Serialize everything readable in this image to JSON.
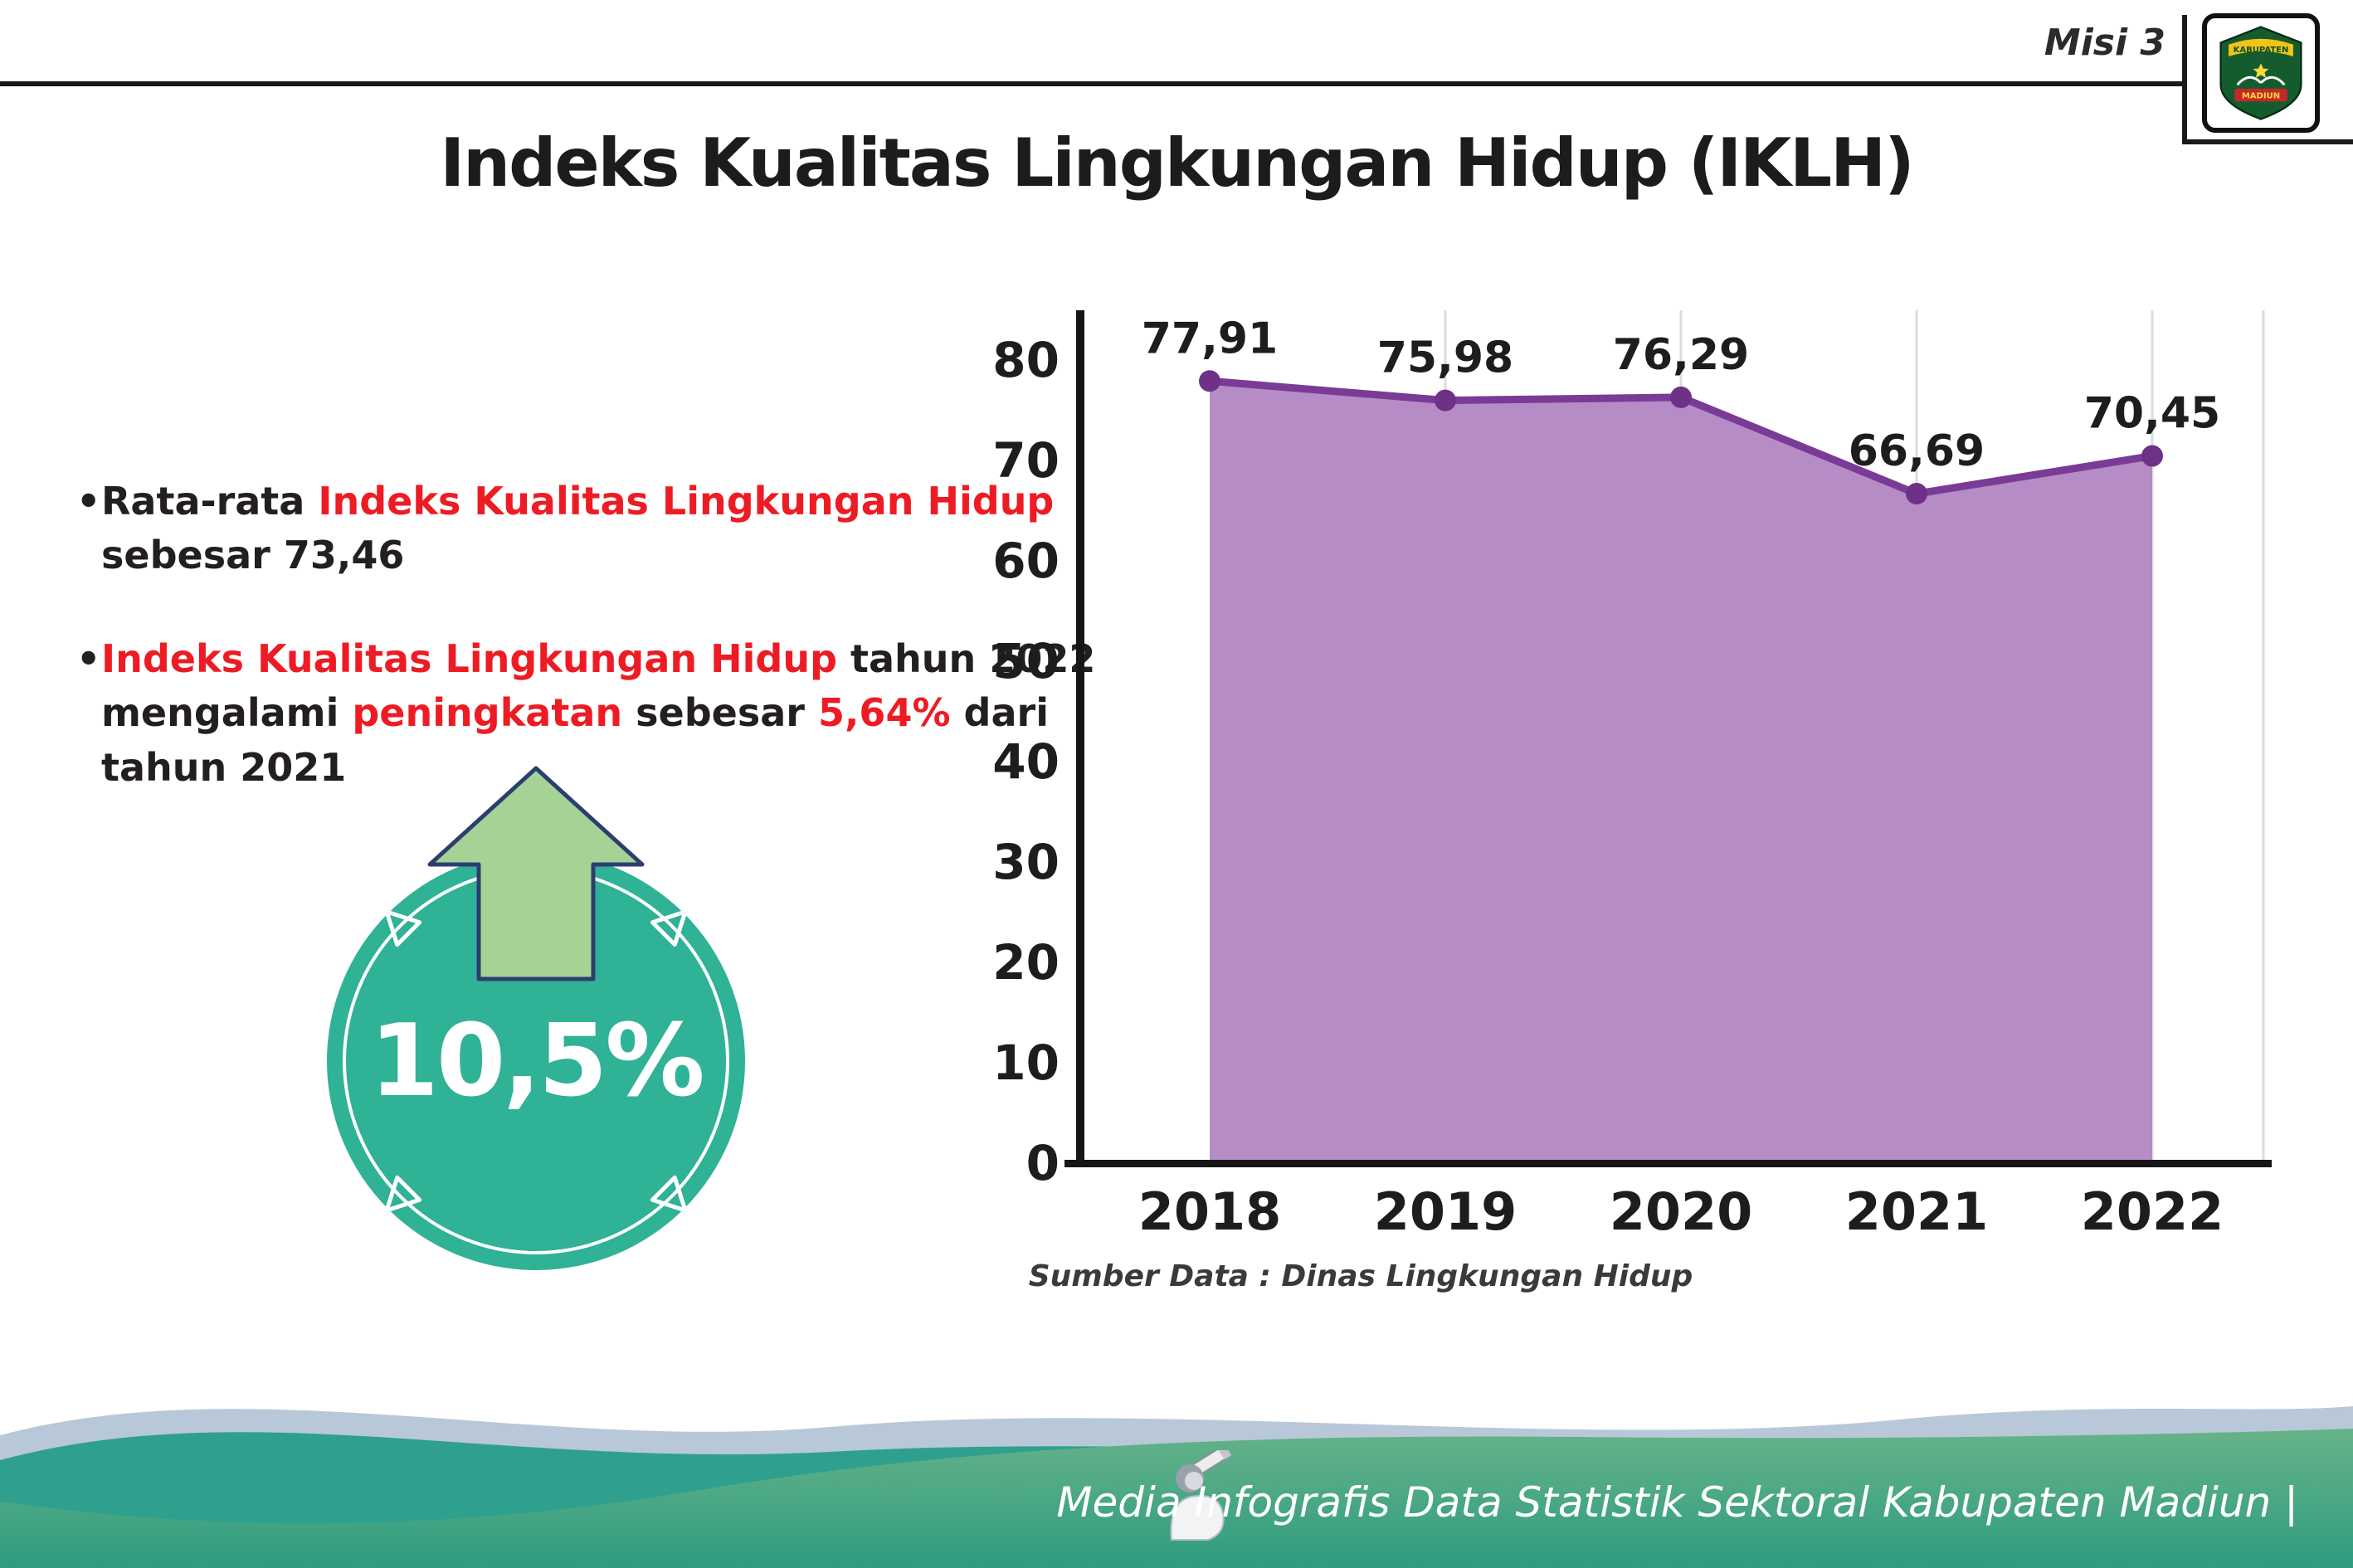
{
  "colors": {
    "red": "#ed1c24",
    "badge_teal": "#2fb295",
    "arrow_green": "#a6d295",
    "arrow_outline": "#2c3e70",
    "area": "#b58cc6",
    "line": "#7a3b96",
    "marker": "#6e3187",
    "axis": "#161616",
    "grid": "#dcdcdc",
    "wave_light": "#b9c8d8",
    "wave_teal": "#2fa08e",
    "wave_green_top": "#66b389",
    "wave_green_bottom": "#2f9c80"
  },
  "header": {
    "misi_label": "Misi 3",
    "title": "Indeks Kualitas Lingkungan Hidup (IKLH)",
    "logo": {
      "top_text": "KABUPATEN",
      "bottom_text": "MADIUN"
    }
  },
  "bullets": {
    "b1": {
      "marker": "•",
      "segments": [
        {
          "text": "Rata-rata ",
          "red": false
        },
        {
          "text": "Indeks Kualitas Lingkungan Hidup",
          "red": true
        },
        {
          "text": "\nsebesar 73,46",
          "red": false
        }
      ]
    },
    "b2": {
      "marker": "•",
      "segments": [
        {
          "text": "Indeks Kualitas Lingkungan Hidup",
          "red": true
        },
        {
          "text": " tahun 2022\nmengalami ",
          "red": false
        },
        {
          "text": "peningkatan",
          "red": true
        },
        {
          "text": " sebesar ",
          "red": false
        },
        {
          "text": "5,64%",
          "red": true
        },
        {
          "text": " dari\ntahun 2021",
          "red": false
        }
      ]
    }
  },
  "badge": {
    "value": "10,5%"
  },
  "chart_data": {
    "type": "area",
    "title": "",
    "categories": [
      "2018",
      "2019",
      "2020",
      "2021",
      "2022"
    ],
    "values": [
      77.91,
      75.98,
      76.29,
      66.69,
      70.45
    ],
    "point_labels": [
      "77,91",
      "75,98",
      "76,29",
      "66,69",
      "70,45"
    ],
    "ylim": [
      0,
      80
    ],
    "yticks": [
      0,
      10,
      20,
      30,
      40,
      50,
      60,
      70,
      80
    ],
    "grid": "vertical-light",
    "legend": "none",
    "source": "Sumber Data : Dinas Lingkungan Hidup"
  },
  "footer": {
    "caption": "Media Infografis Data Statistik Sektoral Kabupaten Madiun |"
  }
}
